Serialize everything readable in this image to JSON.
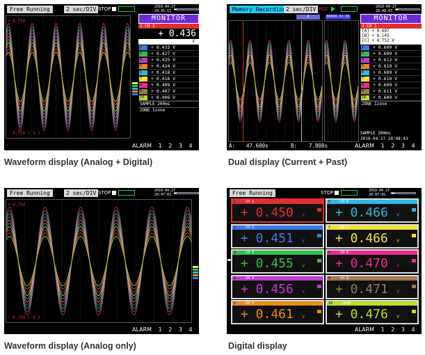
{
  "captions": {
    "p1": "Waveform display (Analog + Digital)",
    "p2": "Dual display (Current + Past)",
    "p3": "Waveform display (Analog only)",
    "p4": "Digital display"
  },
  "panel1": {
    "mode": "Free Running",
    "secdiv": "2  sec/DIV",
    "stop": "STOP",
    "date": "2010-04-27",
    "time": "20:45:15",
    "y_top": "+ 0.750",
    "y_bottom": "- 0.750 (  V  )",
    "monitor_title": "MONITOR",
    "ch1_label": "1     CH 1",
    "ch1_value": "+ 0.436",
    "ch1_unit": "V",
    "channels": [
      {
        "ch": "2",
        "value": "+ 0.433  V",
        "color": "#3a7bea"
      },
      {
        "ch": "3",
        "value": "+ 0.427  V",
        "color": "#2fc24a"
      },
      {
        "ch": "4",
        "value": "+ 0.425  V",
        "color": "#c03ad0"
      },
      {
        "ch": "5",
        "value": "+ 0.424  V",
        "color": "#e98a1a"
      },
      {
        "ch": "6",
        "value": "+ 0.418  V",
        "color": "#2fb9e6"
      },
      {
        "ch": "7",
        "value": "+ 0.416  V",
        "color": "#f2e436"
      },
      {
        "ch": "8",
        "value": "+ 0.409  V",
        "color": "#ea2a90"
      },
      {
        "ch": "9",
        "value": "+ 0.407  V",
        "color": "#a0784a"
      },
      {
        "ch": "10",
        "value": "+ 0.406  V",
        "color": "#b6e02a"
      }
    ],
    "sample": "SAMPLE  200ms",
    "zone": "ZONE      1zone",
    "alarm": [
      "ALARM",
      "1",
      "2",
      "3",
      "4"
    ]
  },
  "panel2": {
    "mode": "Memory Recording",
    "secdiv": "2  sec/DIV",
    "rec": "REC",
    "date": "2010-04-27",
    "time": "20:48:43",
    "cursor_box": "00000:01:36",
    "cursor_a": "A",
    "cursor_b": "B",
    "monitor_title": "MONITOR",
    "ch1_label": "1     CH 1",
    "ch1_lines": [
      "[A]   + 0.607",
      "[B]   + 0.145",
      "[C]   + 0.752  V"
    ],
    "channels": [
      {
        "ch": "2",
        "value": "+ 0.609  V",
        "color": "#3a7bea"
      },
      {
        "ch": "3",
        "value": "+ 0.609  V",
        "color": "#2fc24a"
      },
      {
        "ch": "4",
        "value": "+ 0.612  V",
        "color": "#c03ad0"
      },
      {
        "ch": "5",
        "value": "+ 0.610  V",
        "color": "#e98a1a"
      },
      {
        "ch": "6",
        "value": "+ 0.609  V",
        "color": "#2fb9e6"
      },
      {
        "ch": "7",
        "value": "+ 0.610  V",
        "color": "#f2e436"
      },
      {
        "ch": "8",
        "value": "+ 0.609  V",
        "color": "#ea2a90"
      },
      {
        "ch": "9",
        "value": "+ 0.611  V",
        "color": "#a0784a"
      },
      {
        "ch": "10",
        "value": "+ 0.609  V",
        "color": "#b6e02a"
      }
    ],
    "zone": "ZONE       1zone",
    "sample": "SAMPLE  200ms",
    "footer_date": "2010-04-27  20:48:43",
    "a_label": "A:",
    "a_value": "47.600s",
    "b_label": "B:",
    "b_value": "7.800s",
    "alarm": [
      "ALARM",
      "1",
      "2",
      "3",
      "4"
    ]
  },
  "panel3": {
    "mode": "Free Running",
    "secdiv": "2  sec/DIV",
    "stop": "STOP",
    "date": "2010-04-27",
    "time": "20:47:02",
    "y_top": "+ 0.750",
    "y_bottom": "- 0.750 (  V  )",
    "alarm": [
      "ALARM",
      "1",
      "2",
      "3",
      "4"
    ]
  },
  "panel4": {
    "mode": "Free Running",
    "stop": "STOP",
    "date": "2010-04-27",
    "time": "20:47:45",
    "tiles": [
      {
        "ch": "1",
        "name": "CH 1",
        "value": "+ 0.450",
        "color": "#e03030",
        "hd": "#e03030",
        "border": "#e03030"
      },
      {
        "ch": "6",
        "name": "CH 6",
        "value": "+ 0.466",
        "color": "#2fb9e6",
        "hd": "#2fb9e6",
        "border": "#dddddd"
      },
      {
        "ch": "2",
        "name": "CH 2",
        "value": "+ 0.451",
        "color": "#3a7bea",
        "hd": "#3a7bea",
        "border": "#dddddd"
      },
      {
        "ch": "7",
        "name": "CH 7",
        "value": "+ 0.466",
        "color": "#f2e436",
        "hd": "#f2e436",
        "border": "#dddddd"
      },
      {
        "ch": "3",
        "name": "CH 3",
        "value": "+ 0.455",
        "color": "#2fc24a",
        "hd": "#2fc24a",
        "border": "#dddddd"
      },
      {
        "ch": "8",
        "name": "CH 8",
        "value": "+ 0.470",
        "color": "#ea2a90",
        "hd": "#ea2a90",
        "border": "#dddddd"
      },
      {
        "ch": "4",
        "name": "CH 4",
        "value": "+ 0.456",
        "color": "#c03ad0",
        "hd": "#c03ad0",
        "border": "#dddddd"
      },
      {
        "ch": "9",
        "name": "CH 9",
        "value": "+ 0.471",
        "color": "#a0784a",
        "hd": "#a0784a",
        "border": "#dddddd"
      },
      {
        "ch": "5",
        "name": "CH 5",
        "value": "+ 0.461",
        "color": "#e98a1a",
        "hd": "#e98a1a",
        "border": "#dddddd"
      },
      {
        "ch": "10",
        "name": "CH10",
        "value": "+ 0.476",
        "color": "#b6e02a",
        "hd": "#b6e02a",
        "border": "#dddddd"
      }
    ],
    "unit": "V",
    "alarm": [
      "ALARM",
      "1",
      "2",
      "3",
      "4"
    ]
  },
  "wave_colors": [
    "#e03030",
    "#3a7bea",
    "#2fc24a",
    "#c03ad0",
    "#e98a1a",
    "#2fb9e6",
    "#f2e436",
    "#ea2a90",
    "#a0784a",
    "#b6e02a"
  ]
}
